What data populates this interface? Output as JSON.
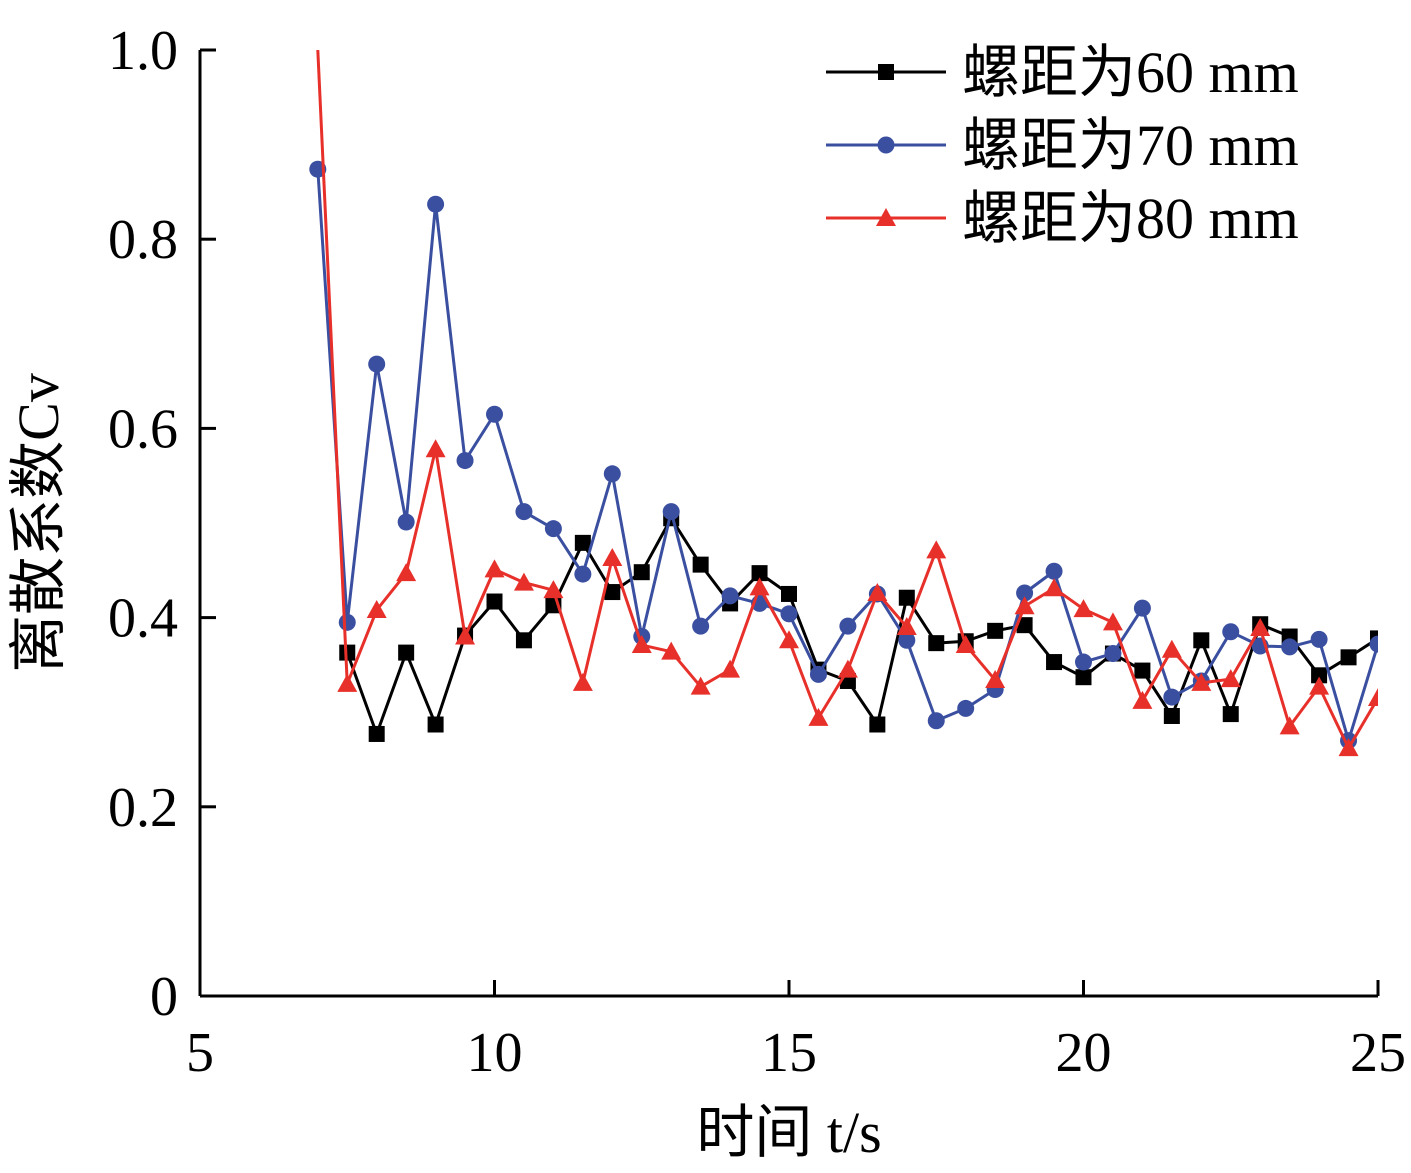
{
  "chart_data": {
    "type": "line",
    "title": "",
    "xlabel": "时间 t/s",
    "ylabel": "离散系数Cv",
    "xlim": [
      5,
      25
    ],
    "ylim": [
      0,
      1.0
    ],
    "x_ticks": [
      "5",
      "10",
      "15",
      "20",
      "25"
    ],
    "y_ticks": [
      "0",
      "0.2",
      "0.4",
      "0.6",
      "0.8",
      "1.0"
    ],
    "grid": false,
    "legend_position": "top-right",
    "series": [
      {
        "name": "螺距为60 mm",
        "color": "#000000",
        "marker": "square",
        "x": [
          7.5,
          8,
          8.5,
          9,
          9.5,
          10,
          10.5,
          11,
          11.5,
          12,
          12.5,
          13,
          13.5,
          14,
          14.5,
          15,
          15.5,
          16,
          16.5,
          17,
          17.5,
          18,
          18.5,
          19,
          19.5,
          20,
          20.5,
          21,
          21.5,
          22,
          22.5,
          23,
          23.5,
          24,
          24.5,
          25
        ],
        "y": [
          0.363,
          0.277,
          0.363,
          0.287,
          0.381,
          0.417,
          0.376,
          0.413,
          0.479,
          0.427,
          0.448,
          0.505,
          0.456,
          0.415,
          0.447,
          0.425,
          0.345,
          0.333,
          0.287,
          0.421,
          0.373,
          0.375,
          0.386,
          0.392,
          0.353,
          0.337,
          0.362,
          0.344,
          0.296,
          0.376,
          0.298,
          0.393,
          0.38,
          0.339,
          0.358,
          0.378
        ]
      },
      {
        "name": "螺距为70 mm",
        "color": "#3a4fa0",
        "marker": "circle",
        "x": [
          7,
          7.5,
          8,
          8.5,
          9,
          9.5,
          10,
          10.5,
          11,
          11.5,
          12,
          12.5,
          13,
          13.5,
          14,
          14.5,
          15,
          15.5,
          16,
          16.5,
          17,
          17.5,
          18,
          18.5,
          19,
          19.5,
          20,
          20.5,
          21,
          21.5,
          22,
          22.5,
          23,
          23.5,
          24,
          24.5,
          25
        ],
        "y": [
          0.874,
          0.395,
          0.668,
          0.501,
          0.837,
          0.566,
          0.615,
          0.512,
          0.494,
          0.446,
          0.552,
          0.38,
          0.512,
          0.391,
          0.423,
          0.415,
          0.404,
          0.34,
          0.391,
          0.425,
          0.376,
          0.291,
          0.304,
          0.324,
          0.426,
          0.449,
          0.353,
          0.362,
          0.41,
          0.316,
          0.333,
          0.385,
          0.37,
          0.369,
          0.377,
          0.27,
          0.372
        ]
      },
      {
        "name": "螺距为80 mm",
        "color": "#e8302a",
        "marker": "triangle",
        "x": [
          7,
          7.5,
          8,
          8.5,
          9,
          9.5,
          10,
          10.5,
          11,
          11.5,
          12,
          12.5,
          13,
          13.5,
          14,
          14.5,
          15,
          15.5,
          16,
          16.5,
          17,
          17.5,
          18,
          18.5,
          19,
          19.5,
          20,
          20.5,
          21,
          21.5,
          22,
          22.5,
          23,
          23.5,
          24,
          24.5,
          25
        ],
        "y": [
          1.0,
          0.33,
          0.408,
          0.447,
          0.578,
          0.38,
          0.451,
          0.437,
          0.429,
          0.331,
          0.463,
          0.371,
          0.364,
          0.327,
          0.345,
          0.432,
          0.376,
          0.294,
          0.345,
          0.426,
          0.39,
          0.471,
          0.371,
          0.334,
          0.412,
          0.431,
          0.409,
          0.395,
          0.312,
          0.366,
          0.331,
          0.335,
          0.389,
          0.285,
          0.327,
          0.262,
          0.315
        ]
      }
    ]
  }
}
